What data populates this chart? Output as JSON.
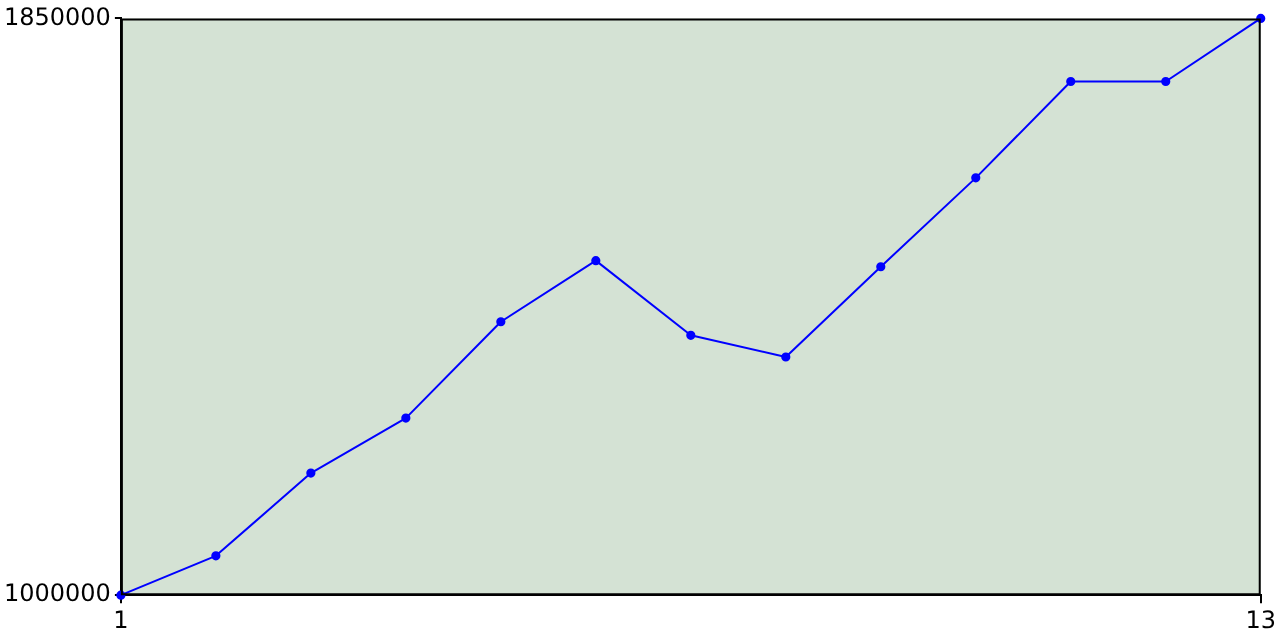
{
  "chart_data": {
    "type": "line",
    "x": [
      1,
      2,
      3,
      4,
      5,
      6,
      7,
      8,
      9,
      10,
      11,
      12,
      13
    ],
    "series": [
      {
        "color": "#0000ff",
        "values": [
          1000000,
          1058000,
          1180000,
          1261000,
          1403000,
          1493000,
          1383000,
          1351000,
          1484000,
          1615000,
          1757000,
          1757000,
          1850000
        ]
      }
    ],
    "xlim": [
      1,
      13
    ],
    "xticks": [
      1,
      13
    ],
    "ylim": [
      1000000,
      1850000
    ],
    "yticks": [
      1000000,
      1850000
    ],
    "grid": false,
    "legend": false,
    "marker": "circle",
    "line_style": "solid"
  }
}
